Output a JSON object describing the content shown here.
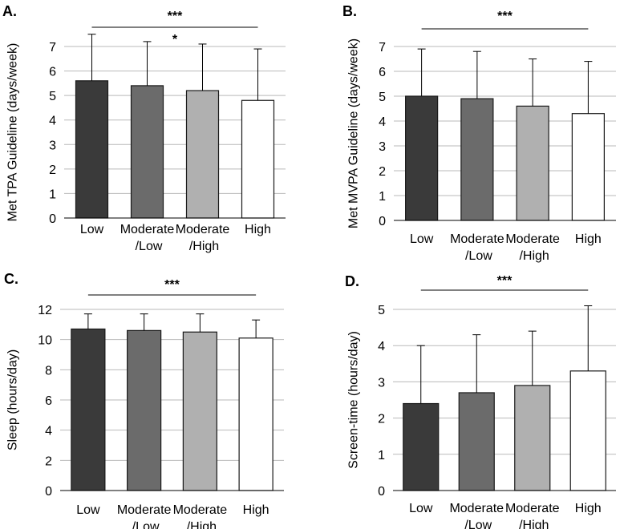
{
  "chart_data": [
    {
      "panel": "A.",
      "type": "bar",
      "categories": [
        [
          "Low"
        ],
        [
          "Moderate",
          "/Low"
        ],
        [
          "Moderate",
          "/High"
        ],
        [
          "High"
        ]
      ],
      "values": [
        5.6,
        5.4,
        5.2,
        4.8
      ],
      "error_upper": [
        7.5,
        7.2,
        7.1,
        6.9
      ],
      "ylabel": "Met TPA Guideline (days/week)",
      "ylim": [
        0,
        7
      ],
      "yticks": [
        0,
        1,
        2,
        3,
        4,
        5,
        6,
        7
      ],
      "grid": true,
      "significance": [
        {
          "label": "***",
          "from": 0,
          "to": 3,
          "line": true
        },
        {
          "label": "*",
          "from": 1,
          "to": 2,
          "line": false
        }
      ]
    },
    {
      "panel": "B.",
      "type": "bar",
      "categories": [
        [
          "Low"
        ],
        [
          "Moderate",
          "/Low"
        ],
        [
          "Moderate",
          "/High"
        ],
        [
          "High"
        ]
      ],
      "values": [
        5.0,
        4.9,
        4.6,
        4.3
      ],
      "error_upper": [
        6.9,
        6.8,
        6.5,
        6.4
      ],
      "ylabel": "Met MVPA Guideline (days/week)",
      "ylim": [
        0,
        7
      ],
      "yticks": [
        0,
        1,
        2,
        3,
        4,
        5,
        6,
        7
      ],
      "grid": true,
      "significance": [
        {
          "label": "***",
          "from": 0,
          "to": 3,
          "line": true
        }
      ]
    },
    {
      "panel": "C.",
      "type": "bar",
      "categories": [
        [
          "Low"
        ],
        [
          "Moderate",
          "/Low"
        ],
        [
          "Moderate",
          "/High"
        ],
        [
          "High"
        ]
      ],
      "values": [
        10.7,
        10.6,
        10.5,
        10.1
      ],
      "error_upper": [
        11.7,
        11.7,
        11.7,
        11.3
      ],
      "ylabel": "Sleep (hours/day)",
      "ylim": [
        0,
        12
      ],
      "yticks": [
        0,
        2,
        4,
        6,
        8,
        10,
        12
      ],
      "grid": true,
      "significance": [
        {
          "label": "***",
          "from": 0,
          "to": 3,
          "line": true
        }
      ]
    },
    {
      "panel": "D.",
      "type": "bar",
      "categories": [
        [
          "Low"
        ],
        [
          "Moderate",
          "/Low"
        ],
        [
          "Moderate",
          "/High"
        ],
        [
          "High"
        ]
      ],
      "values": [
        2.4,
        2.7,
        2.9,
        3.3
      ],
      "error_upper": [
        4.0,
        4.3,
        4.4,
        5.1
      ],
      "ylabel": "Screen-time (hours/day)",
      "ylim": [
        0,
        5
      ],
      "yticks": [
        0,
        1,
        2,
        3,
        4,
        5
      ],
      "grid": true,
      "significance": [
        {
          "label": "***",
          "from": 0,
          "to": 3,
          "line": true
        }
      ]
    }
  ],
  "bar_colors": [
    "#3a3a3a",
    "#6b6b6b",
    "#b0b0b0",
    "#ffffff"
  ],
  "colors": {
    "grid": "#b9b9b9",
    "axis": "#000000",
    "bar_edge": "#1a1a1a",
    "error": "#000000"
  }
}
